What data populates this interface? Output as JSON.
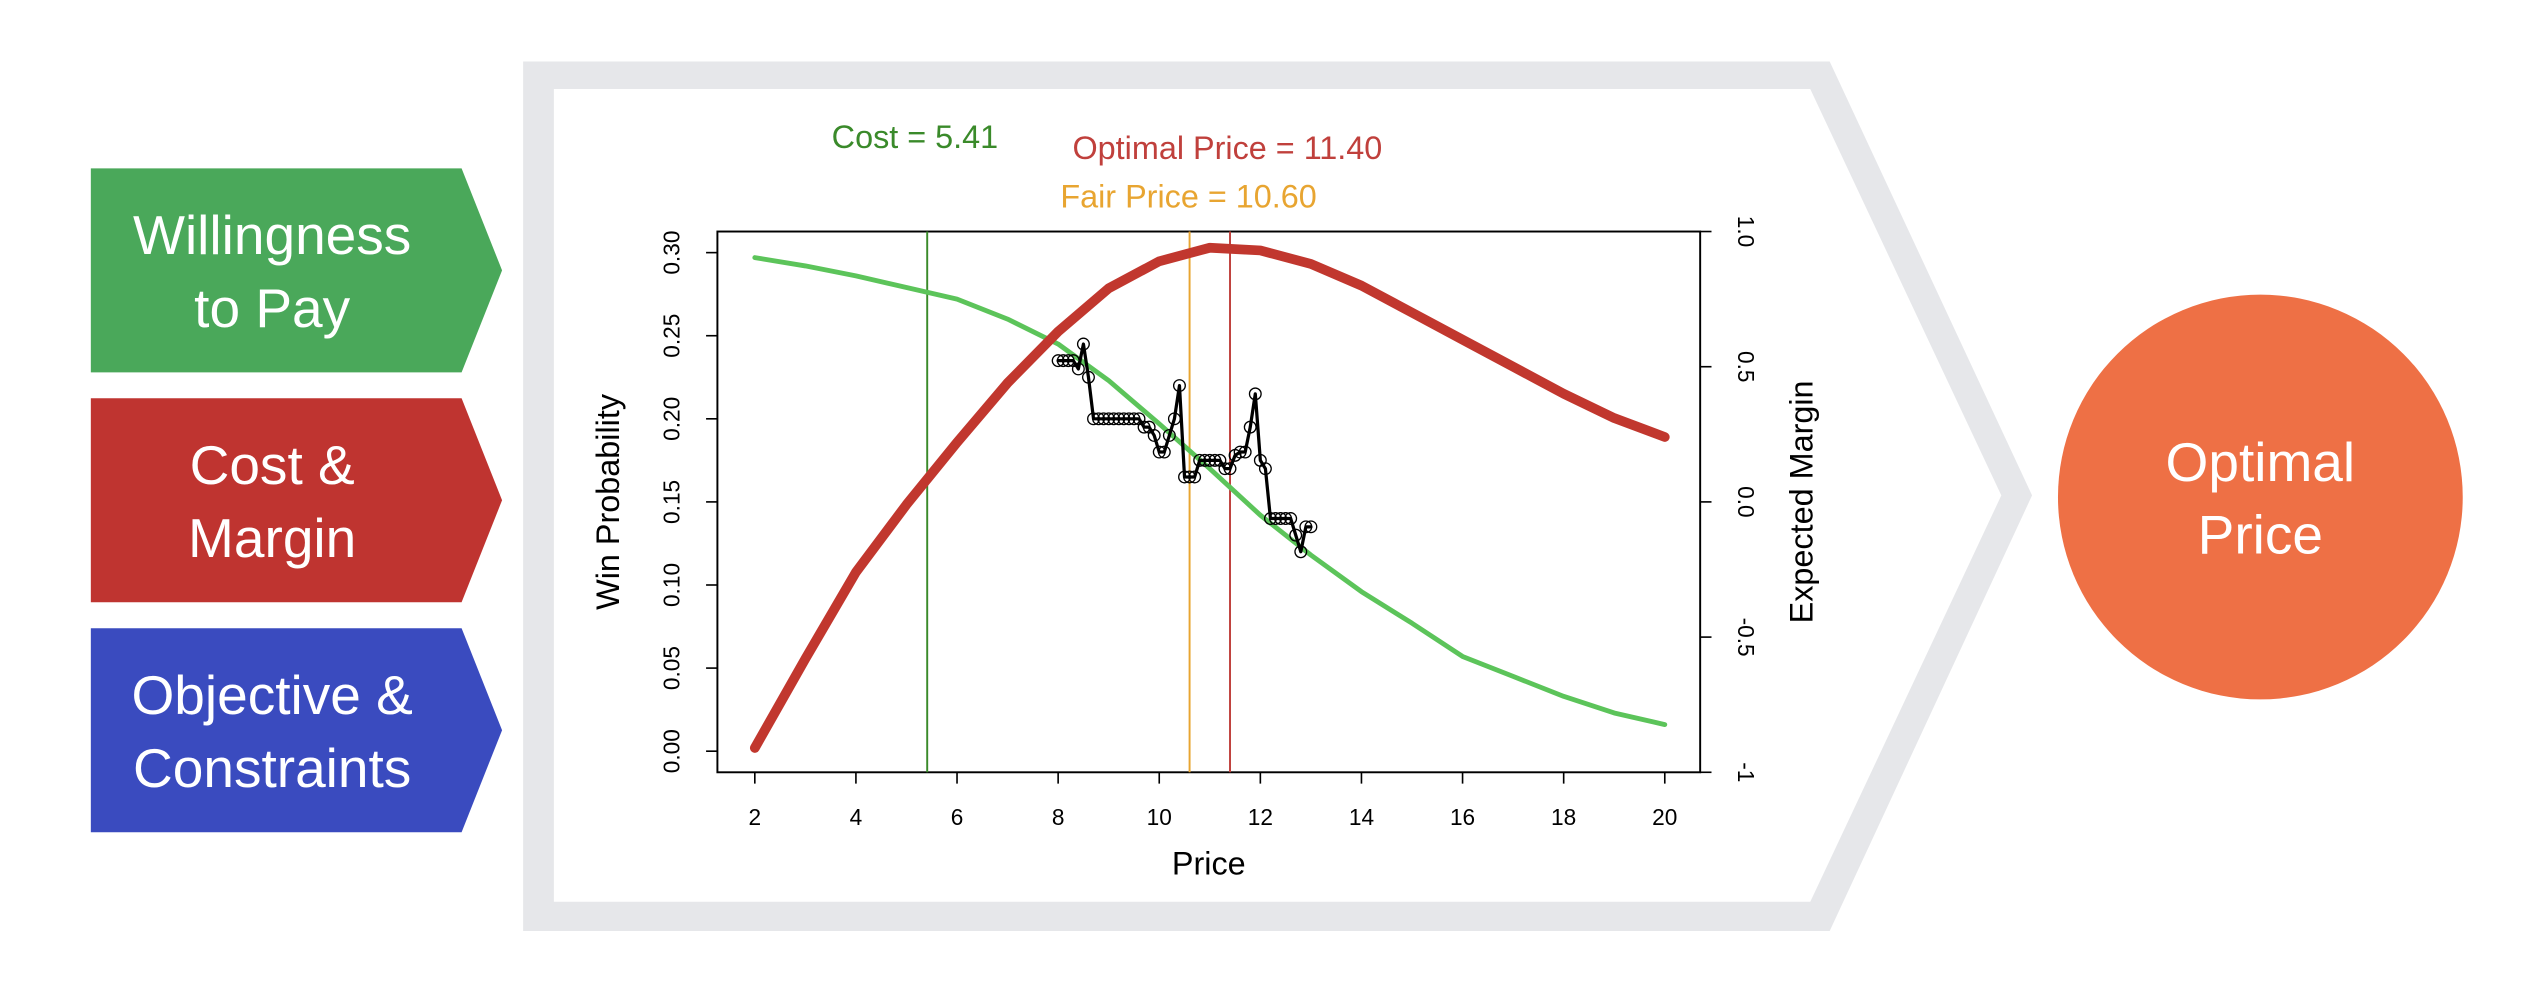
{
  "panels": [
    {
      "lines": [
        "Willingness",
        "to Pay"
      ]
    },
    {
      "lines": [
        "Cost &",
        "Margin"
      ]
    },
    {
      "lines": [
        "Objective &",
        "Constraints"
      ]
    }
  ],
  "result": {
    "lines": [
      "Optimal",
      "Price"
    ]
  },
  "chart_data": {
    "type": "line",
    "x_label": "Price",
    "y_label": "Win Probability",
    "y2_label": "Expected Margin",
    "xlim": [
      1.26,
      20.7
    ],
    "xticks": [
      2,
      4,
      6,
      8,
      10,
      12,
      14,
      16,
      18,
      20
    ],
    "ylim": [
      -0.0127,
      0.3127
    ],
    "yticks": [
      {
        "value": 0,
        "label": "0.00"
      },
      0.05,
      {
        "value": 0.1,
        "label": "0.10"
      },
      0.15,
      {
        "value": 0.2,
        "label": "0.20"
      },
      0.25,
      {
        "value": 0.3,
        "label": "0.30"
      }
    ],
    "y2lim": [
      -1,
      1
    ],
    "y2ticks": [
      -1,
      -0.5,
      {
        "value": 0,
        "label": "0.0"
      },
      0.5,
      {
        "value": 1,
        "label": "1.0"
      }
    ],
    "series": [
      {
        "color": "#5cc45a",
        "x": [
          2,
          3,
          4,
          5,
          6,
          7,
          8,
          9,
          10,
          11,
          12,
          13,
          14,
          15,
          16,
          17,
          18,
          19,
          20
        ],
        "values": [
          0.297,
          0.292,
          0.286,
          0.279,
          0.272,
          0.26,
          0.245,
          0.223,
          0.197,
          0.17,
          0.142,
          0.118,
          0.096,
          0.077,
          0.057,
          0.045,
          0.033,
          0.023,
          0.016
        ]
      },
      {
        "color": "#c1372e",
        "axis": "y2",
        "x": [
          2,
          3,
          4,
          5,
          6,
          7,
          8,
          9,
          10,
          11,
          12,
          13,
          14,
          15,
          16,
          17,
          18,
          19,
          20
        ],
        "values": [
          -0.91,
          -0.58,
          -0.26,
          -0.01,
          0.22,
          0.44,
          0.63,
          0.79,
          0.89,
          0.94,
          0.93,
          0.88,
          0.8,
          0.7,
          0.6,
          0.5,
          0.4,
          0.31,
          0.24
        ]
      },
      {
        "color": "#000000",
        "markers": true,
        "x": [
          8,
          8.1,
          8.2,
          8.3,
          8.4,
          8.5,
          8.6,
          8.7,
          8.8,
          8.9,
          9,
          9.1,
          9.2,
          9.3,
          9.4,
          9.5,
          9.6,
          9.7,
          9.8,
          9.9,
          10,
          10.1,
          10.2,
          10.3,
          10.4,
          10.5,
          10.6,
          10.7,
          10.8,
          10.9,
          11,
          11.1,
          11.2,
          11.3,
          11.4,
          11.5,
          11.6,
          11.7,
          11.8,
          11.9,
          12,
          12.1,
          12.2,
          12.3,
          12.4,
          12.5,
          12.6,
          12.7,
          12.8,
          12.9,
          13
        ],
        "values": [
          0.235,
          0.235,
          0.235,
          0.235,
          0.23,
          0.245,
          0.225,
          0.2,
          0.2,
          0.2,
          0.2,
          0.2,
          0.2,
          0.2,
          0.2,
          0.2,
          0.2,
          0.195,
          0.195,
          0.19,
          0.18,
          0.18,
          0.19,
          0.2,
          0.22,
          0.165,
          0.165,
          0.165,
          0.175,
          0.175,
          0.175,
          0.175,
          0.175,
          0.17,
          0.17,
          0.178,
          0.18,
          0.18,
          0.195,
          0.215,
          0.175,
          0.17,
          0.14,
          0.14,
          0.14,
          0.14,
          0.14,
          0.13,
          0.12,
          0.135,
          0.135
        ]
      }
    ],
    "vlines": [
      {
        "label": "Cost = 5.41",
        "value": 5.41,
        "color": "#3a8a2a"
      },
      {
        "label": "Optimal Price = 11.40",
        "value": 11.4,
        "color": "#c0403c"
      },
      {
        "label": "Fair Price = 10.60",
        "value": 10.6,
        "color": "#e8a531"
      }
    ]
  }
}
